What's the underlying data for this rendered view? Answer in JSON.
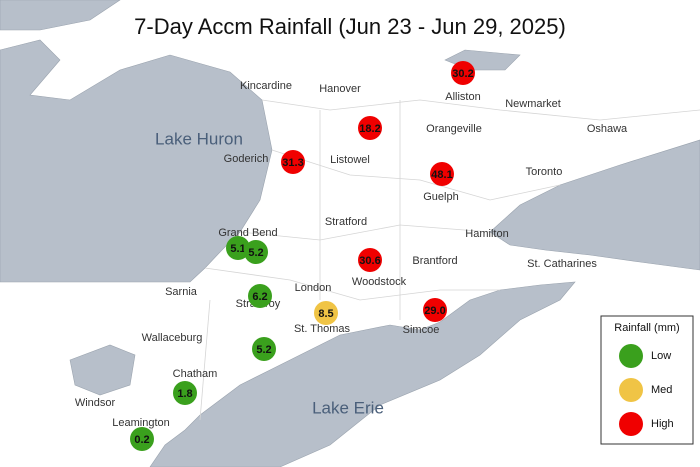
{
  "title": "7-Day Accm Rainfall (Jun 23 - Jun 29, 2025)",
  "water": [
    "Lake Huron",
    "Lake Erie"
  ],
  "places": [
    "Kincardine",
    "Hanover",
    "Alliston",
    "Newmarket",
    "Oshawa",
    "Orangeville",
    "Goderich",
    "Listowel",
    "Toronto",
    "Guelph",
    "Stratford",
    "Grand Bend",
    "Hamilton",
    "Brantford",
    "St. Catharines",
    "Woodstock",
    "Sarnia",
    "London",
    "Strathroy",
    "St. Thomas",
    "Simcoe",
    "Wallaceburg",
    "Chatham",
    "Windsor",
    "Leamington"
  ],
  "stations": [
    {
      "value": 30.2,
      "color": "#f00000"
    },
    {
      "value": 18.2,
      "color": "#f00000"
    },
    {
      "value": 31.3,
      "color": "#f00000"
    },
    {
      "value": 48.1,
      "color": "#f00000"
    },
    {
      "value": 5.1,
      "color": "#3aa01d"
    },
    {
      "value": 5.2,
      "color": "#3aa01d"
    },
    {
      "value": 30.6,
      "color": "#f00000"
    },
    {
      "value": 6.2,
      "color": "#3aa01d"
    },
    {
      "value": 8.5,
      "color": "#f0c445"
    },
    {
      "value": 29,
      "label": "29.0",
      "color": "#f00000"
    },
    {
      "value": 5.2,
      "color": "#3aa01d"
    },
    {
      "value": 1.8,
      "color": "#3aa01d"
    },
    {
      "value": 0.2,
      "color": "#3aa01d"
    }
  ],
  "legend": {
    "title": "Rainfall (mm)",
    "items": [
      {
        "label": "Low",
        "color": "#3aa01d"
      },
      {
        "label": "Med",
        "color": "#f0c445"
      },
      {
        "label": "High",
        "color": "#f00000"
      }
    ]
  }
}
